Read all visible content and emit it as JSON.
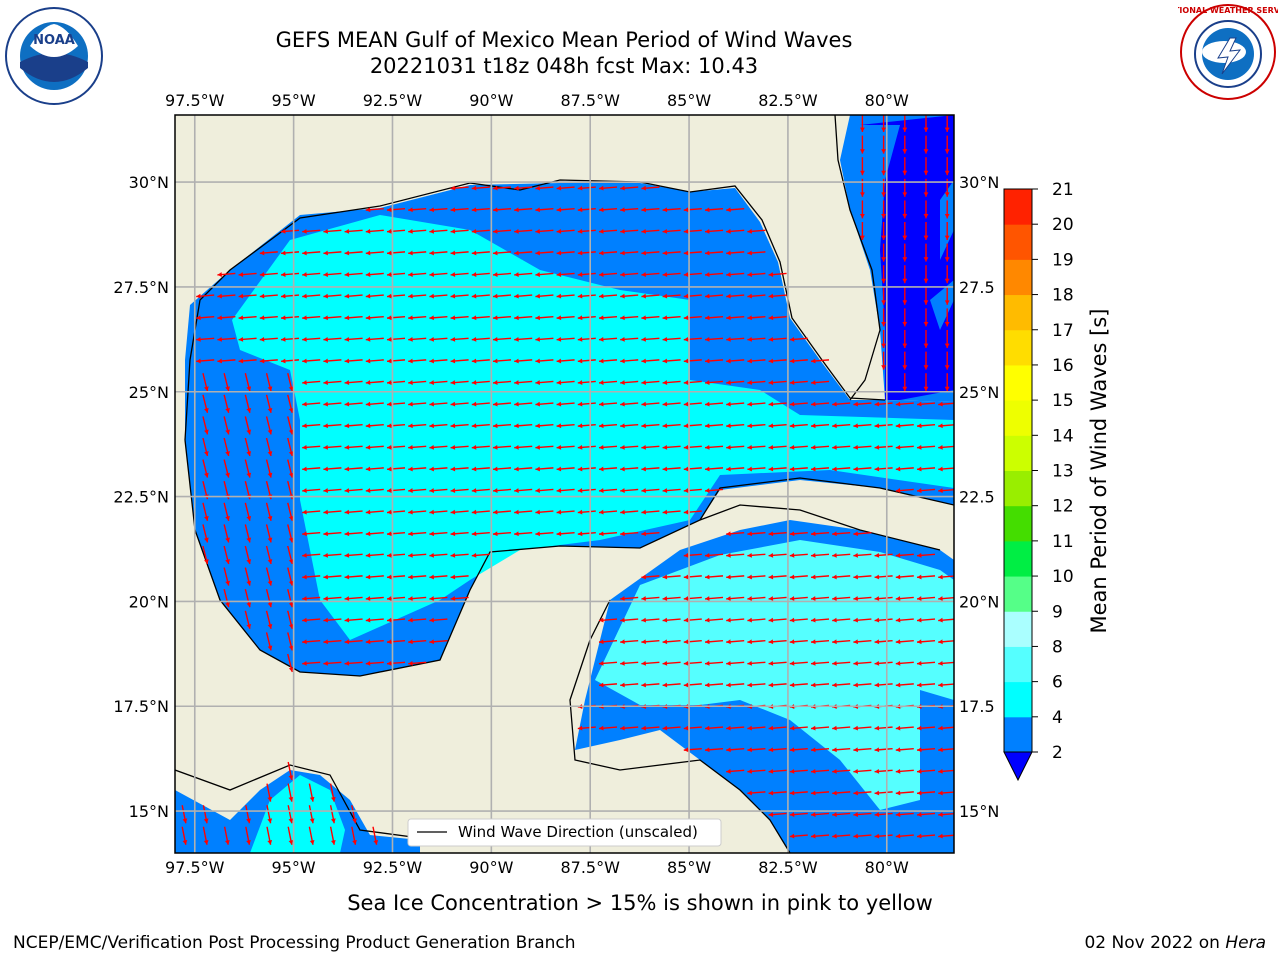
{
  "title": {
    "line1": "GEFS MEAN Gulf of Mexico Mean Period of Wind Waves",
    "line2": "20221031 t18z 048h fcst   Max: 10.43"
  },
  "map": {
    "lon_ticks": [
      "97.5°W",
      "95°W",
      "92.5°W",
      "90°W",
      "87.5°W",
      "85°W",
      "82.5°W",
      "80°W"
    ],
    "lat_ticks_left": [
      "30°N",
      "27.5°N",
      "25°N",
      "22.5°N",
      "20°N",
      "17.5°N",
      "15°N"
    ],
    "lat_ticks_right": [
      "30°N",
      "27.5",
      "25°N",
      "22.5",
      "20°N",
      "17.5",
      "15°N"
    ],
    "legend_label": "Wind Wave Direction (unscaled)",
    "extent": {
      "lon_min": -98,
      "lon_max": -78.3,
      "lat_min": 14,
      "lat_max": 31.6
    },
    "colors": {
      "land": "#efeedc",
      "water_2_4": "#0080ff",
      "water_lt2": "#0000ff",
      "water_4_6": "#00ffff",
      "water_6_8": "#55ffff",
      "arrow": "#ff0000",
      "grid": "#b0b0b0"
    }
  },
  "colorbar": {
    "label": "Mean Period of Wind Waves [s]",
    "ticks": [
      "2",
      "4",
      "6",
      "8",
      "9",
      "10",
      "11",
      "12",
      "13",
      "14",
      "15",
      "16",
      "17",
      "18",
      "19",
      "20",
      "21"
    ],
    "colors": [
      "#0080ff",
      "#00ffff",
      "#55ffff",
      "#aaffff",
      "#55ff88",
      "#00ee44",
      "#44dd00",
      "#99ee00",
      "#ccff00",
      "#eeff00",
      "#ffff00",
      "#ffdd00",
      "#ffbb00",
      "#ff8800",
      "#ff5500",
      "#ff2200"
    ],
    "under_color": "#0000ff",
    "over_color": "#ff0000"
  },
  "footer": {
    "note": "Sea Ice Concentration > 15% is shown in pink to yellow",
    "left": "NCEP/EMC/Verification Post Processing Product Generation Branch",
    "right_date": "02 Nov 2022 on",
    "right_host": "Hera"
  },
  "logos": {
    "noaa": "NOAA",
    "nws": "NATIONAL WEATHER SERVICE"
  }
}
